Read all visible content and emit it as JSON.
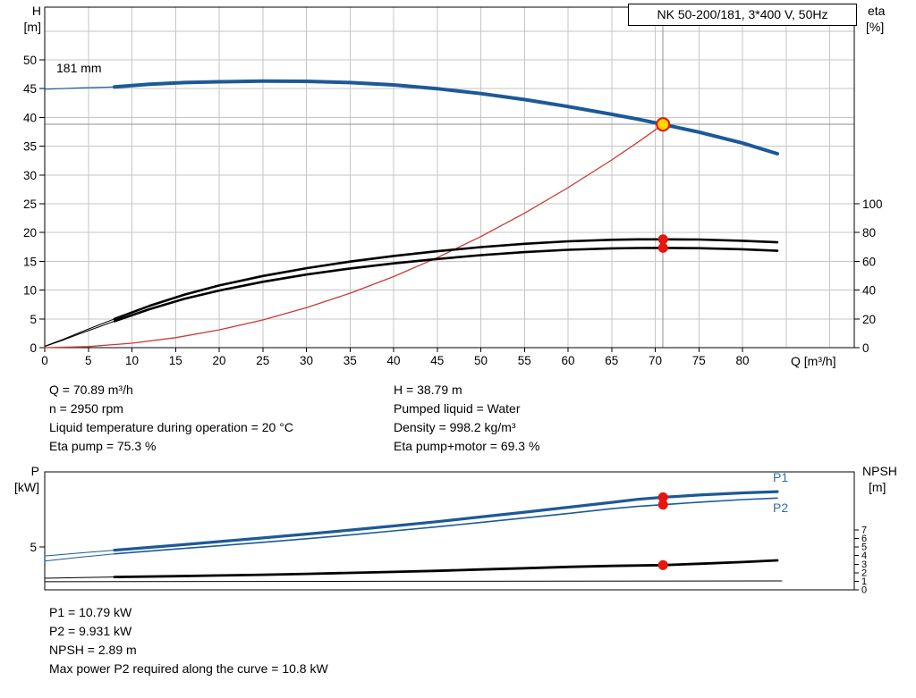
{
  "colors": {
    "pump_blue": "#1c5998",
    "system_red": "#c93a34",
    "marker": "#e8150d",
    "duty_point_fill": "#ffd800",
    "grid": "#c6c6c6",
    "crosshair": "#8f8f8f",
    "curve_label_blue": "#2e6fb4"
  },
  "info": {
    "left": [
      "Q = 70.89 m³/h",
      "n = 2950 rpm",
      "Liquid temperature during operation = 20 °C",
      "Eta pump = 75.3 %"
    ],
    "right": [
      "H = 38.79 m",
      "Pumped liquid = Water",
      "Density = 998.2 kg/m³",
      "Eta pump+motor = 69.3 %"
    ],
    "bottom": [
      "P1 = 10.79 kW",
      "P2 = 9.931 kW",
      "NPSH = 2.89 m",
      "Max power P2 required along the curve = 10.8 kW"
    ]
  },
  "chart_data": [
    {
      "name": "qh-eta-chart",
      "type": "line",
      "title": "NK 50-200/181, 3*400 V, 50Hz",
      "impeller_label": "181 mm",
      "x_label": "Q [m³/h]",
      "y_left_label_lines": [
        "H",
        "[m]"
      ],
      "y_right_label_lines": [
        "eta",
        "[%]"
      ],
      "x_ticks": [
        0,
        5,
        10,
        15,
        20,
        25,
        30,
        35,
        40,
        45,
        50,
        55,
        60,
        65,
        70,
        75,
        80
      ],
      "y_left_ticks": [
        0,
        5,
        10,
        15,
        20,
        25,
        30,
        35,
        40,
        45,
        50
      ],
      "y_right_ticks": [
        0,
        20,
        40,
        60,
        80,
        100
      ],
      "x_range": [
        0,
        92.8
      ],
      "y_left_range": [
        0,
        59.2
      ],
      "y_right_range": [
        0,
        236.6
      ],
      "duty_point": {
        "q": 70.89,
        "h": 38.79
      },
      "series": [
        {
          "name": "pump-curve-extension",
          "axis": "H",
          "color": "#1c5998",
          "width": 1.2,
          "points": [
            [
              0,
              44.9
            ],
            [
              4,
              45.12
            ],
            [
              8,
              45.3
            ]
          ]
        },
        {
          "name": "pump-curve-181mm",
          "axis": "H",
          "color": "#1c5998",
          "width": 4,
          "points": [
            [
              8,
              45.3
            ],
            [
              12,
              45.78
            ],
            [
              16,
              46.05
            ],
            [
              20,
              46.2
            ],
            [
              25,
              46.3
            ],
            [
              30,
              46.27
            ],
            [
              35,
              46.05
            ],
            [
              40,
              45.65
            ],
            [
              45,
              45.0
            ],
            [
              50,
              44.15
            ],
            [
              55,
              43.1
            ],
            [
              60,
              41.9
            ],
            [
              65,
              40.55
            ],
            [
              68,
              39.7
            ],
            [
              70.89,
              38.79
            ],
            [
              75,
              37.45
            ],
            [
              80,
              35.55
            ],
            [
              84,
              33.7
            ]
          ]
        },
        {
          "name": "system-curve",
          "axis": "H",
          "color": "#c93a34",
          "width": 1.3,
          "points": [
            [
              0,
              0
            ],
            [
              5,
              0.19
            ],
            [
              10,
              0.77
            ],
            [
              15,
              1.74
            ],
            [
              20,
              3.09
            ],
            [
              25,
              4.82
            ],
            [
              30,
              6.95
            ],
            [
              35,
              9.46
            ],
            [
              40,
              12.35
            ],
            [
              45,
              15.63
            ],
            [
              50,
              19.3
            ],
            [
              55,
              23.35
            ],
            [
              60,
              27.79
            ],
            [
              65,
              32.61
            ],
            [
              68,
              35.68
            ],
            [
              70.89,
              38.79
            ]
          ]
        },
        {
          "name": "eta-pump-extension",
          "axis": "eta",
          "color": "#000000",
          "width": 1,
          "points": [
            [
              0,
              1
            ],
            [
              2,
              5.5
            ],
            [
              4,
              10.5
            ],
            [
              6,
              15.3
            ],
            [
              8,
              20
            ]
          ]
        },
        {
          "name": "eta-pump-curve",
          "axis": "eta",
          "color": "#000000",
          "width": 2.6,
          "points": [
            [
              8,
              20
            ],
            [
              12,
              29
            ],
            [
              16,
              36.8
            ],
            [
              20,
              43.2
            ],
            [
              25,
              49.8
            ],
            [
              30,
              55.2
            ],
            [
              35,
              59.8
            ],
            [
              40,
              63.7
            ],
            [
              45,
              67
            ],
            [
              50,
              69.9
            ],
            [
              55,
              72.2
            ],
            [
              60,
              73.9
            ],
            [
              65,
              75.0
            ],
            [
              68,
              75.25
            ],
            [
              70.89,
              75.3
            ],
            [
              75,
              75.15
            ],
            [
              80,
              74.3
            ],
            [
              84,
              73.2
            ]
          ]
        },
        {
          "name": "eta-pump-motor-extension",
          "axis": "eta",
          "color": "#000000",
          "width": 1,
          "points": [
            [
              0,
              0.8
            ],
            [
              2,
              5
            ],
            [
              4,
              9.6
            ],
            [
              6,
              14
            ],
            [
              8,
              18.4
            ]
          ]
        },
        {
          "name": "eta-pump-motor-curve",
          "axis": "eta",
          "color": "#000000",
          "width": 2.6,
          "points": [
            [
              8,
              18.4
            ],
            [
              12,
              26.7
            ],
            [
              16,
              33.9
            ],
            [
              20,
              39.7
            ],
            [
              25,
              45.8
            ],
            [
              30,
              50.8
            ],
            [
              35,
              55.0
            ],
            [
              40,
              58.6
            ],
            [
              45,
              61.6
            ],
            [
              50,
              64.3
            ],
            [
              55,
              66.4
            ],
            [
              60,
              68.0
            ],
            [
              65,
              69.0
            ],
            [
              68,
              69.25
            ],
            [
              70.89,
              69.3
            ],
            [
              75,
              69.15
            ],
            [
              80,
              68.4
            ],
            [
              84,
              67.3
            ]
          ]
        }
      ],
      "markers": [
        {
          "name": "duty-point",
          "type": "duty",
          "axis": "H",
          "q": 70.89,
          "value": 38.79
        },
        {
          "name": "eta-pump-point",
          "type": "dot",
          "axis": "eta",
          "q": 70.89,
          "value": 75.3
        },
        {
          "name": "eta-pump-motor-point",
          "type": "dot",
          "axis": "eta",
          "q": 70.89,
          "value": 69.3
        }
      ]
    },
    {
      "name": "power-npsh-chart",
      "type": "line",
      "x_label": "",
      "y_left_label_lines": [
        "P",
        "[kW]"
      ],
      "y_right_label_lines": [
        "NPSH",
        "[m]"
      ],
      "p1_label": "P1",
      "p2_label": "P2",
      "x_ticks": [],
      "y_left_ticks": [
        5
      ],
      "y_right_ticks": [
        0,
        1,
        2,
        3,
        4,
        5,
        6,
        7
      ],
      "x_range": [
        0,
        92.8
      ],
      "y_left_range": [
        0,
        13.75
      ],
      "y_right_range": [
        0,
        13.8
      ],
      "series": [
        {
          "name": "p1-extension",
          "axis": "P",
          "color": "#1c5998",
          "width": 1,
          "points": [
            [
              0,
              3.95
            ],
            [
              4,
              4.3
            ],
            [
              8,
              4.62
            ]
          ]
        },
        {
          "name": "p1-curve",
          "axis": "P",
          "color": "#1c5998",
          "width": 3.2,
          "points": [
            [
              8,
              4.62
            ],
            [
              15,
              5.2
            ],
            [
              20,
              5.62
            ],
            [
              25,
              6.05
            ],
            [
              30,
              6.5
            ],
            [
              35,
              6.97
            ],
            [
              40,
              7.45
            ],
            [
              45,
              7.95
            ],
            [
              50,
              8.5
            ],
            [
              55,
              9.05
            ],
            [
              60,
              9.62
            ],
            [
              65,
              10.2
            ],
            [
              68,
              10.55
            ],
            [
              70.89,
              10.79
            ],
            [
              75,
              11.05
            ],
            [
              80,
              11.3
            ],
            [
              84,
              11.45
            ]
          ]
        },
        {
          "name": "p2-extension",
          "axis": "P",
          "color": "#1c5998",
          "width": 1,
          "points": [
            [
              0,
              3.35
            ],
            [
              4,
              3.8
            ],
            [
              8,
              4.2
            ]
          ]
        },
        {
          "name": "p2-curve",
          "axis": "P",
          "color": "#1c5998",
          "width": 1.6,
          "points": [
            [
              8,
              4.2
            ],
            [
              15,
              4.76
            ],
            [
              20,
              5.14
            ],
            [
              25,
              5.54
            ],
            [
              30,
              5.96
            ],
            [
              35,
              6.4
            ],
            [
              40,
              6.87
            ],
            [
              45,
              7.35
            ],
            [
              50,
              7.85
            ],
            [
              55,
              8.37
            ],
            [
              60,
              8.9
            ],
            [
              65,
              9.46
            ],
            [
              68,
              9.73
            ],
            [
              70.89,
              9.931
            ],
            [
              75,
              10.22
            ],
            [
              80,
              10.52
            ],
            [
              84,
              10.7
            ]
          ]
        },
        {
          "name": "npsh-extension",
          "axis": "NPSH",
          "color": "#000000",
          "width": 1,
          "points": [
            [
              0,
              1.36
            ],
            [
              4,
              1.43
            ],
            [
              8,
              1.5
            ]
          ]
        },
        {
          "name": "npsh-curve",
          "axis": "NPSH",
          "color": "#000000",
          "width": 2.8,
          "points": [
            [
              8,
              1.5
            ],
            [
              15,
              1.6
            ],
            [
              20,
              1.68
            ],
            [
              25,
              1.77
            ],
            [
              30,
              1.87
            ],
            [
              35,
              1.98
            ],
            [
              40,
              2.1
            ],
            [
              45,
              2.23
            ],
            [
              50,
              2.38
            ],
            [
              55,
              2.53
            ],
            [
              60,
              2.68
            ],
            [
              65,
              2.8
            ],
            [
              70.89,
              2.89
            ],
            [
              75,
              3.05
            ],
            [
              80,
              3.25
            ],
            [
              84,
              3.45
            ]
          ]
        },
        {
          "name": "reference-line",
          "axis": "NPSH",
          "color": "#000000",
          "width": 1,
          "points": [
            [
              0,
              0.95
            ],
            [
              40,
              1.0
            ],
            [
              84.5,
              1.05
            ]
          ]
        }
      ],
      "markers": [
        {
          "name": "p1-point",
          "type": "dot",
          "axis": "P",
          "q": 70.89,
          "value": 10.79
        },
        {
          "name": "p2-point",
          "type": "dot",
          "axis": "P",
          "q": 70.89,
          "value": 9.931
        },
        {
          "name": "npsh-point",
          "type": "dot",
          "axis": "NPSH",
          "q": 70.89,
          "value": 2.89
        }
      ]
    }
  ]
}
